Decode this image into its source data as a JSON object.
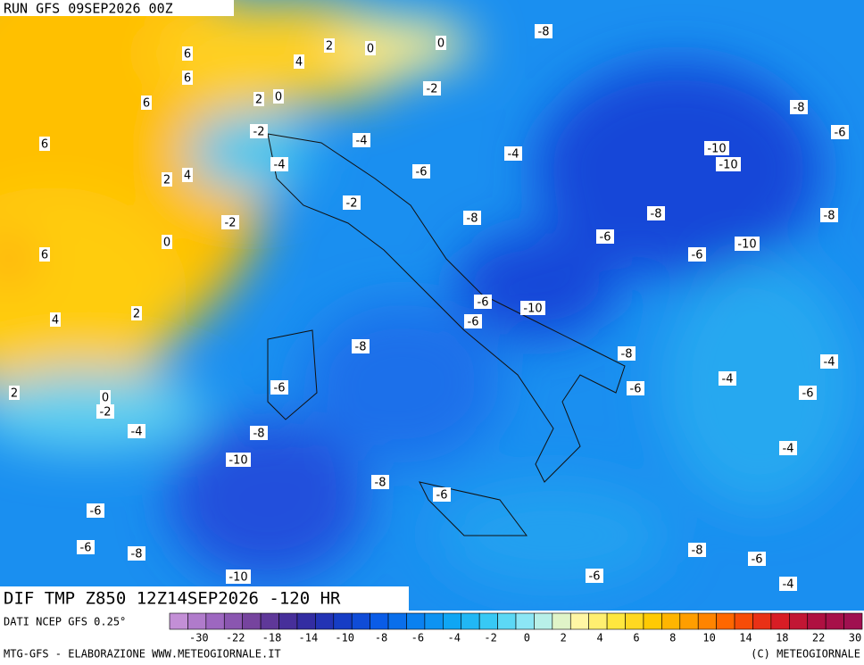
{
  "header": {
    "run": "RUN GFS 09SEP2026 00Z"
  },
  "map": {
    "contour_labels": [
      "-8",
      "2",
      "0",
      "0",
      "6",
      "4",
      "6",
      "-2",
      "6",
      "2",
      "0",
      "-8",
      "-6",
      "-2",
      "-4",
      "6",
      "-10",
      "-4",
      "-10",
      "-4",
      "2",
      "4",
      "-6",
      "-2",
      "-8",
      "-8",
      "-2",
      "-8",
      "-6",
      "0",
      "-10",
      "6",
      "-6",
      "-6",
      "-10",
      "2",
      "4",
      "-6",
      "-8",
      "-8",
      "-4",
      "-6",
      "-4",
      "-6",
      "2",
      "0",
      "-6",
      "-2",
      "-4",
      "-8",
      "-4",
      "-10",
      "-8",
      "-6",
      "-6",
      "-6",
      "-8",
      "-8",
      "-6",
      "-6",
      "-10",
      "-4"
    ]
  },
  "footer": {
    "product": "DIF TMP Z850 12Z14SEP2026 -120 HR",
    "source": "DATI NCEP GFS 0.25°",
    "credit_left": "MTG-GFS - ELABORAZIONE WWW.METEOGIORNALE.IT",
    "credit_right": "(C) METEOGIORNALE"
  },
  "colorbar": {
    "labels": [
      -30,
      -22,
      -18,
      -14,
      -10,
      -8,
      -6,
      -4,
      -2,
      0,
      2,
      4,
      6,
      8,
      10,
      14,
      18,
      22,
      30
    ]
  }
}
